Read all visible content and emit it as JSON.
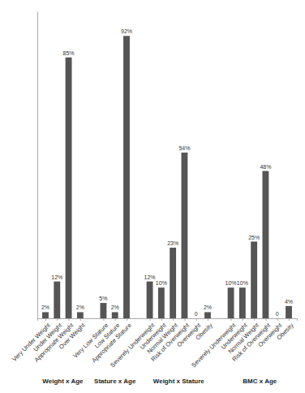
{
  "chart_data": {
    "type": "bar",
    "groups": [
      {
        "label": "Weight x Age",
        "categories": [
          "Very Under Weight",
          "Under Weight",
          "Appropriate Weight",
          "Over Weight"
        ],
        "values": [
          2,
          12,
          85,
          2
        ],
        "value_labels": [
          "2%",
          "12%",
          "85%",
          "2%"
        ]
      },
      {
        "label": "Stature x Age",
        "categories": [
          "Very Low Stature",
          "Low Stature",
          "Appropriate Stature"
        ],
        "values": [
          5,
          2,
          92
        ],
        "value_labels": [
          "5%",
          "2%",
          "92%"
        ]
      },
      {
        "label": "Weight x Stature",
        "categories": [
          "Severely Underweight",
          "Underweight",
          "Normal Weight",
          "Risk of Overweight",
          "Overweight",
          "Obesity"
        ],
        "values": [
          12,
          10,
          23,
          54,
          0,
          2
        ],
        "value_labels": [
          "12%",
          "10%",
          "23%",
          "54%",
          "0",
          "2%"
        ]
      },
      {
        "label": "BMC x Age",
        "categories": [
          "Severely Underweight",
          "Underweight",
          "Normal Weight",
          "Risk of Overweight",
          "Overweight",
          "Obesity"
        ],
        "values": [
          10,
          10,
          25,
          48,
          0,
          4
        ],
        "value_labels": [
          "10%",
          "10%",
          "25%",
          "48%",
          "0",
          "4%"
        ]
      }
    ],
    "color": "#555555",
    "ylim": [
      0,
      100
    ],
    "grid": false,
    "tick_labels": "x"
  }
}
